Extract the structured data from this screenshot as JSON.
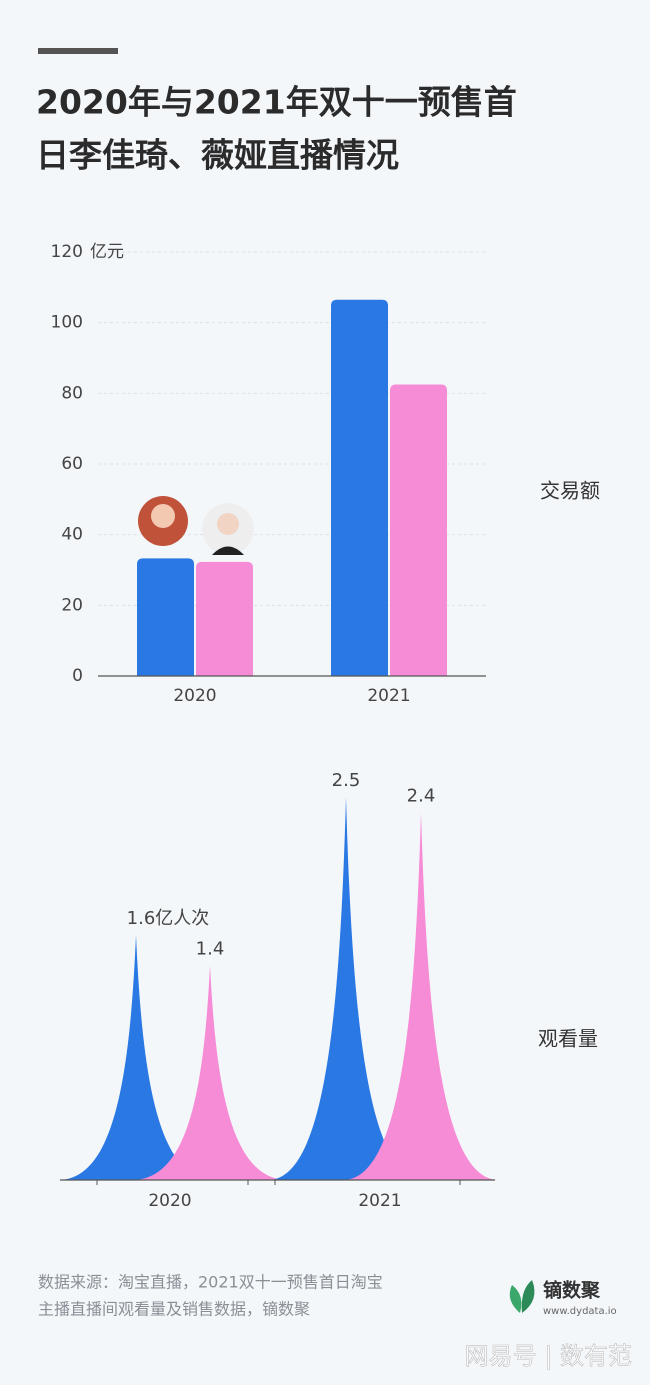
{
  "header": {
    "title_lines": [
      "2020年与2021年双十一预售首",
      "日李佳琦、薇娅直播情况"
    ]
  },
  "chart_data": [
    {
      "type": "bar",
      "side_label": "交易额",
      "y_unit": "亿元",
      "categories": [
        "2020",
        "2021"
      ],
      "series": [
        {
          "color": "#2a78e4",
          "values": [
            33.3,
            106.5
          ]
        },
        {
          "color": "#f68bd6",
          "values": [
            32.3,
            82.5
          ]
        }
      ],
      "ylim": [
        0,
        120
      ],
      "yticks": [
        0,
        20,
        40,
        60,
        80,
        100,
        120
      ],
      "grid": true
    },
    {
      "type": "spike",
      "side_label": "观看量",
      "categories": [
        "2020",
        "2021"
      ],
      "series": [
        {
          "color": "#2a78e4",
          "values": [
            1.6,
            2.5
          ],
          "value_labels": [
            "1.6亿人次",
            "2.5"
          ]
        },
        {
          "color": "#f68bd6",
          "values": [
            1.4,
            2.4
          ],
          "value_labels": [
            "1.4",
            "2.4"
          ]
        }
      ]
    }
  ],
  "footer": {
    "source_lines": [
      "数据来源：淘宝直播，2021双十一预售首日淘宝",
      "主播直播间观看量及销售数据，镝数聚"
    ],
    "logo_name": "镝数聚",
    "logo_url": "www.dydata.io",
    "watermark": "网易号 | 数有范"
  }
}
